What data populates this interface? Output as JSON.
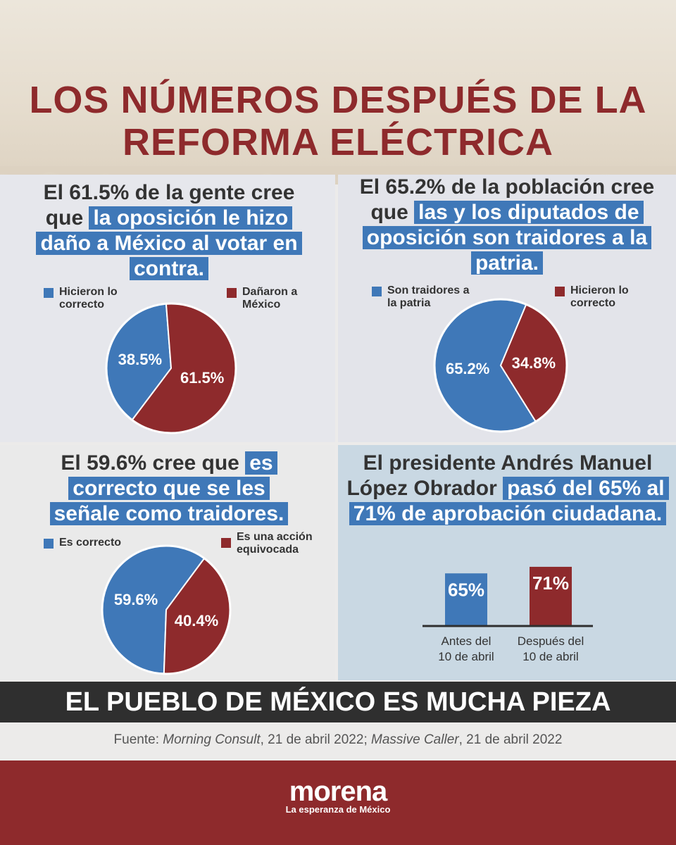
{
  "title": {
    "line1": "LOS NÚMEROS DESPUÉS DE LA",
    "line2": "REFORMA ELÉCTRICA"
  },
  "panels": [
    {
      "headline_plain": "El 61.5% de la gente cree que",
      "headline_highlight": "la oposición le hizo daño a México al votar en contra."
    },
    {
      "headline_plain": "El 65.2% de la población cree que",
      "headline_highlight": "las y los diputados de oposición son traidores a la patria."
    },
    {
      "headline_plain": "El 59.6% cree que",
      "headline_highlight": "es correcto que se les señale como traidores."
    },
    {
      "headline_plain": "El presidente Andrés Manuel López Obrador",
      "headline_highlight": "pasó del 65% al 71% de aprobación ciudadana."
    }
  ],
  "colors": {
    "blue": "#3f78b8",
    "red": "#8e2a2c",
    "dark": "#2f2f2f"
  },
  "chart_data": [
    {
      "type": "pie",
      "slices": [
        {
          "name": "Hicieron lo correcto",
          "label": "38.5%",
          "value": 38.5,
          "color": "#3f78b8"
        },
        {
          "name": "Dañaron a México",
          "label": "61.5%",
          "value": 61.5,
          "color": "#8e2a2c"
        }
      ],
      "legend": [
        "Hicieron lo correcto",
        "Dañaron a México"
      ]
    },
    {
      "type": "pie",
      "slices": [
        {
          "name": "Son traidores a la patria",
          "label": "65.2%",
          "value": 65.2,
          "color": "#3f78b8"
        },
        {
          "name": "Hicieron lo correcto",
          "label": "34.8%",
          "value": 34.8,
          "color": "#8e2a2c"
        }
      ],
      "legend": [
        "Son traidores a la patria",
        "Hicieron lo correcto"
      ]
    },
    {
      "type": "pie",
      "slices": [
        {
          "name": "Es correcto",
          "label": "59.6%",
          "value": 59.6,
          "color": "#3f78b8"
        },
        {
          "name": "Es una acción equivocada",
          "label": "40.4%",
          "value": 40.4,
          "color": "#8e2a2c"
        }
      ],
      "legend": [
        "Es correcto",
        "Es una acción equivocada"
      ]
    },
    {
      "type": "bar",
      "categories": [
        "Antes del 10 de abril",
        "Después del 10 de abril"
      ],
      "values": [
        65,
        71
      ],
      "labels": [
        "65%",
        "71%"
      ],
      "colors": [
        "#3f78b8",
        "#8e2a2c"
      ]
    }
  ],
  "banner": "EL PUEBLO DE MÉXICO ES MUCHA PIEZA",
  "source": {
    "prefix": "Fuente: ",
    "src1": "Morning Consult",
    "mid": ", 21 de abril 2022; ",
    "src2": "Massive Caller",
    "suffix": ", 21 de abril 2022"
  },
  "logo": {
    "word": "morena",
    "tagline": "La esperanza de México"
  }
}
